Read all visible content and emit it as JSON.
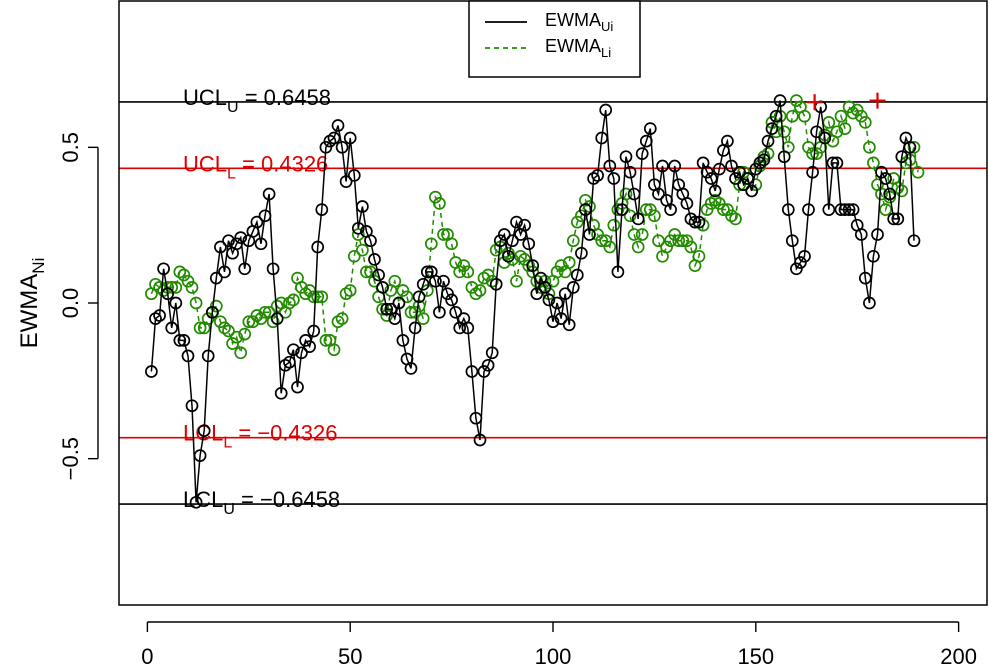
{
  "chart_data": {
    "type": "line",
    "xlabel": "",
    "ylabel": {
      "base": "EWMA",
      "sub": "Ni"
    },
    "xlim": [
      -7,
      207
    ],
    "ylim": [
      -0.97,
      0.97
    ],
    "xticks": [
      0,
      50,
      100,
      150,
      200
    ],
    "xtick_labels": [
      "0",
      "50",
      "100",
      "150",
      "200"
    ],
    "yticks": [
      -0.5,
      0.0,
      0.5
    ],
    "ytick_labels": [
      "−0.5",
      "0.0",
      "0.5"
    ],
    "legend": {
      "placement": "top-center",
      "entries": [
        {
          "base": "EWMA",
          "sub": "Ui",
          "series": "upper",
          "linestyle": "solid"
        },
        {
          "base": "EWMA",
          "sub": "Li",
          "series": "lower",
          "linestyle": "dashed"
        }
      ]
    },
    "control_limits": [
      {
        "id": "ucl_u",
        "value": 0.6458,
        "color": "#000000",
        "label": {
          "pre": "UCL",
          "sub": "U",
          "post": " = 0.6458"
        }
      },
      {
        "id": "ucl_l",
        "value": 0.4326,
        "color": "#dd0000",
        "label": {
          "pre": "UCL",
          "sub": "L",
          "post": " = 0.4326"
        }
      },
      {
        "id": "lcl_l",
        "value": -0.4326,
        "color": "#dd0000",
        "label": {
          "pre": "LCL",
          "sub": "L",
          "post": " = −0.4326"
        }
      },
      {
        "id": "lcl_u",
        "value": -0.6458,
        "color": "#000000",
        "label": {
          "pre": "LCL",
          "sub": "U",
          "post": " = −0.6458"
        }
      }
    ],
    "series": [
      {
        "id": "upper",
        "color": "#000000",
        "linestyle": "solid",
        "marker": "circle",
        "x_start": 1,
        "values": [
          -0.22,
          -0.05,
          -0.04,
          0.11,
          0.03,
          -0.08,
          0.0,
          -0.12,
          -0.12,
          -0.17,
          -0.33,
          -0.64,
          -0.49,
          -0.41,
          -0.17,
          -0.03,
          0.08,
          0.18,
          0.1,
          0.2,
          0.16,
          0.19,
          0.21,
          0.11,
          0.2,
          0.23,
          0.26,
          0.19,
          0.28,
          0.35,
          0.11,
          -0.05,
          -0.29,
          -0.2,
          -0.19,
          -0.15,
          -0.27,
          -0.16,
          -0.12,
          -0.14,
          -0.09,
          0.18,
          0.3,
          0.5,
          0.52,
          0.53,
          0.57,
          0.5,
          0.39,
          0.53,
          0.41,
          0.24,
          0.31,
          0.23,
          0.2,
          0.14,
          0.09,
          0.05,
          -0.02,
          -0.02,
          -0.05,
          0.0,
          -0.12,
          -0.18,
          -0.21,
          -0.08,
          0.02,
          0.06,
          0.1,
          0.1,
          0.07,
          -0.03,
          0.07,
          0.03,
          0.01,
          -0.03,
          -0.08,
          -0.05,
          -0.08,
          -0.22,
          -0.37,
          -0.44,
          -0.22,
          -0.2,
          -0.16,
          0.06,
          0.2,
          0.22,
          0.15,
          0.2,
          0.26,
          0.22,
          0.25,
          0.19,
          0.12,
          0.03,
          0.08,
          0.05,
          0.01,
          -0.06,
          0.0,
          -0.05,
          0.03,
          -0.07,
          0.05,
          0.09,
          0.16,
          0.3,
          0.22,
          0.4,
          0.41,
          0.53,
          0.62,
          0.44,
          0.4,
          0.1,
          0.3,
          0.47,
          0.42,
          0.35,
          0.27,
          0.48,
          0.52,
          0.56,
          0.38,
          0.35,
          0.44,
          0.33,
          0.3,
          0.44,
          0.38,
          0.35,
          0.32,
          0.27,
          0.26,
          0.26,
          0.45,
          0.42,
          0.4,
          0.36,
          0.43,
          0.49,
          0.52,
          0.44,
          0.4,
          0.42,
          0.38,
          0.4,
          0.36,
          0.43,
          0.45,
          0.46,
          0.52,
          0.56,
          0.6,
          0.65,
          0.47,
          0.3,
          0.2,
          0.11,
          0.13,
          0.15,
          0.3,
          0.42,
          0.55,
          0.63,
          0.53,
          0.3,
          0.45,
          0.45,
          0.3,
          0.3,
          0.3,
          0.3,
          0.25,
          0.22,
          0.08,
          0.0,
          0.15,
          0.22,
          0.42,
          0.4,
          0.35,
          0.27,
          0.27,
          0.47,
          0.53,
          0.5,
          0.2
        ]
      },
      {
        "id": "lower",
        "color": "#228b00",
        "linestyle": "dashed",
        "marker": "circle",
        "x_start": 1,
        "values": [
          0.03,
          0.06,
          0.05,
          0.04,
          0.05,
          0.05,
          0.05,
          0.1,
          0.09,
          0.07,
          0.05,
          0.0,
          -0.08,
          -0.08,
          -0.05,
          -0.03,
          -0.01,
          -0.06,
          -0.08,
          -0.09,
          -0.13,
          -0.11,
          -0.16,
          -0.1,
          -0.06,
          -0.06,
          -0.04,
          -0.05,
          -0.03,
          -0.03,
          -0.06,
          -0.01,
          0.0,
          -0.03,
          0.0,
          0.01,
          0.08,
          0.05,
          0.03,
          0.04,
          0.02,
          0.02,
          0.02,
          -0.12,
          -0.12,
          -0.15,
          -0.06,
          -0.05,
          0.03,
          0.04,
          0.15,
          0.22,
          0.17,
          0.1,
          0.1,
          0.07,
          0.02,
          -0.02,
          -0.04,
          0.04,
          0.07,
          0.0,
          0.04,
          0.02,
          -0.03,
          -0.03,
          -0.01,
          -0.05,
          0.04,
          0.19,
          0.34,
          0.32,
          0.22,
          0.22,
          0.19,
          0.13,
          0.1,
          0.12,
          0.1,
          0.05,
          0.03,
          0.04,
          0.08,
          0.09,
          0.07,
          0.17,
          0.18,
          0.13,
          0.16,
          0.14,
          0.07,
          0.15,
          0.14,
          0.12,
          0.1,
          0.07,
          0.05,
          0.07,
          0.03,
          0.07,
          0.1,
          0.12,
          0.1,
          0.13,
          0.2,
          0.26,
          0.28,
          0.33,
          0.31,
          0.25,
          0.22,
          0.2,
          0.2,
          0.18,
          0.25,
          0.3,
          0.32,
          0.35,
          0.28,
          0.22,
          0.18,
          0.22,
          0.3,
          0.3,
          0.28,
          0.2,
          0.15,
          0.18,
          0.2,
          0.22,
          0.2,
          0.2,
          0.2,
          0.18,
          0.12,
          0.15,
          0.25,
          0.3,
          0.32,
          0.33,
          0.32,
          0.3,
          0.3,
          0.28,
          0.27,
          0.38,
          0.42,
          0.4,
          0.36,
          0.38,
          0.44,
          0.47,
          0.48,
          0.58,
          0.55,
          0.6,
          0.55,
          0.5,
          0.6,
          0.65,
          0.63,
          0.6,
          0.5,
          0.48,
          0.48,
          0.5,
          0.54,
          0.58,
          0.52,
          0.55,
          0.6,
          0.56,
          0.63,
          0.61,
          0.62,
          0.6,
          0.58,
          0.5,
          0.45,
          0.38,
          0.35,
          0.3,
          0.34,
          0.4,
          0.37,
          0.36,
          0.45,
          0.46,
          0.5,
          0.42
        ]
      }
    ],
    "signals": [
      {
        "x": 164.5,
        "y": 0.645,
        "color": "#dd0000",
        "marker": "plus"
      },
      {
        "x": 180,
        "y": 0.65,
        "color": "#dd0000",
        "marker": "plus"
      }
    ]
  }
}
